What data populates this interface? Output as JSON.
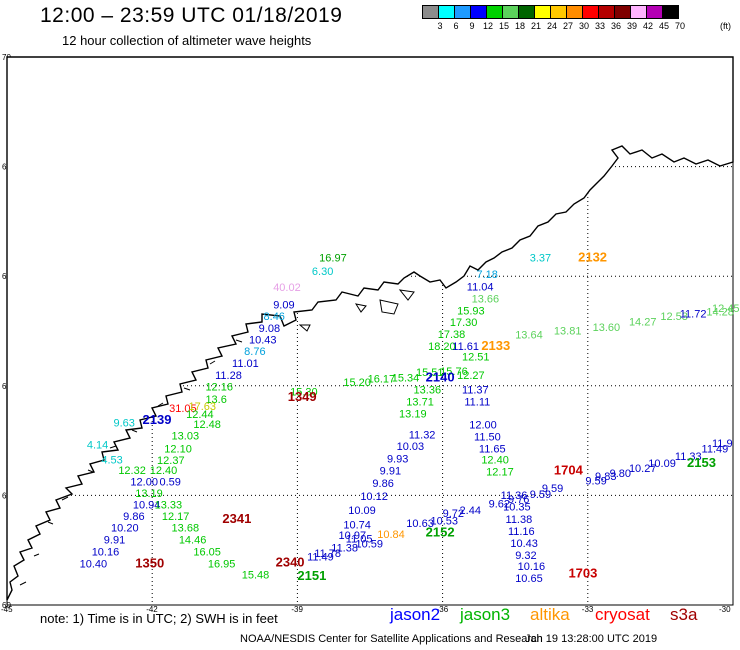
{
  "header": {
    "title": "12:00 – 23:59 UTC 01/18/2019",
    "subtitle": "12 hour collection of altimeter wave heights"
  },
  "legend": {
    "unit": "(ft)",
    "labels": [
      "3",
      "6",
      "9",
      "12",
      "15",
      "18",
      "21",
      "24",
      "27",
      "30",
      "33",
      "36",
      "39",
      "42",
      "45",
      "70"
    ],
    "colors": [
      "#8c8c8c",
      "#00ffff",
      "#1e9bff",
      "#0000ff",
      "#00d200",
      "#5cd25c",
      "#006400",
      "#ffff00",
      "#ffc800",
      "#ff8c00",
      "#ff0000",
      "#b40000",
      "#7f0000",
      "#ffb4ff",
      "#b400b4",
      "#000000"
    ]
  },
  "map": {
    "lat_labels": [
      "70",
      "68",
      "66",
      "64",
      "62",
      "60"
    ],
    "lon_labels": [
      "-45",
      "-42",
      "-39",
      "-36",
      "-33",
      "-30"
    ],
    "land_color": "#ffffff",
    "coast_color": "#000000",
    "grid": "dotted"
  },
  "labels": [
    {
      "t": "16.97",
      "lat": 66.27,
      "lon": -38.55,
      "c": "#00a000"
    },
    {
      "t": "6.30",
      "lat": 66.02,
      "lon": -38.7,
      "c": "#00c8c8"
    },
    {
      "t": "40.02",
      "lat": 65.73,
      "lon": -39.5,
      "c": "#e6a0e6"
    },
    {
      "t": "9.09",
      "lat": 65.41,
      "lon": -39.5,
      "c": "#0000c8"
    },
    {
      "t": "8.46",
      "lat": 65.2,
      "lon": -39.7,
      "c": "#00a0dc"
    },
    {
      "t": "9.08",
      "lat": 64.98,
      "lon": -39.8,
      "c": "#0000c8"
    },
    {
      "t": "10.43",
      "lat": 64.77,
      "lon": -40.0,
      "c": "#0000c8"
    },
    {
      "t": "8.76",
      "lat": 64.56,
      "lon": -40.1,
      "c": "#00a0dc"
    },
    {
      "t": "11.01",
      "lat": 64.34,
      "lon": -40.35,
      "c": "#0000c8"
    },
    {
      "t": "11.28",
      "lat": 64.12,
      "lon": -40.7,
      "c": "#0000c8"
    },
    {
      "t": "12.16",
      "lat": 63.91,
      "lon": -40.9,
      "c": "#00c800"
    },
    {
      "t": "13.6",
      "lat": 63.69,
      "lon": -40.9,
      "c": "#00c800"
    },
    {
      "t": "15.30",
      "lat": 63.82,
      "lon": -39.15,
      "c": "#00c800"
    },
    {
      "t": "15.20",
      "lat": 64.0,
      "lon": -38.05,
      "c": "#00c800"
    },
    {
      "t": "16.17",
      "lat": 64.06,
      "lon": -37.55,
      "c": "#00c800"
    },
    {
      "t": "15.34",
      "lat": 64.08,
      "lon": -37.05,
      "c": "#00c800"
    },
    {
      "t": "15.51",
      "lat": 64.18,
      "lon": -36.55,
      "c": "#00c800"
    },
    {
      "t": "15.76",
      "lat": 64.2,
      "lon": -36.05,
      "c": "#00c800"
    },
    {
      "t": "1349",
      "lat": 63.72,
      "lon": -39.2,
      "c": "#a00000",
      "orbit": true
    },
    {
      "t": "31.05",
      "lat": 63.52,
      "lon": -41.65,
      "c": "#ff0000"
    },
    {
      "t": "17.63",
      "lat": 63.56,
      "lon": -41.25,
      "c": "#c8c800"
    },
    {
      "t": "12.44",
      "lat": 63.41,
      "lon": -41.3,
      "c": "#00c800"
    },
    {
      "t": "2139",
      "lat": 63.3,
      "lon": -42.2,
      "c": "#0000c8",
      "orbit": true
    },
    {
      "t": "12.48",
      "lat": 63.23,
      "lon": -41.15,
      "c": "#00c800"
    },
    {
      "t": "13.03",
      "lat": 63.02,
      "lon": -41.6,
      "c": "#00c800"
    },
    {
      "t": "12.10",
      "lat": 62.78,
      "lon": -41.75,
      "c": "#00c800"
    },
    {
      "t": "12.37",
      "lat": 62.57,
      "lon": -41.9,
      "c": "#00c800"
    },
    {
      "t": "12.40",
      "lat": 62.39,
      "lon": -42.05,
      "c": "#00c800"
    },
    {
      "t": "12.32",
      "lat": 62.39,
      "lon": -42.7,
      "c": "#00c800"
    },
    {
      "t": "4.53",
      "lat": 62.58,
      "lon": -43.05,
      "c": "#00c8c8"
    },
    {
      "t": "4.14",
      "lat": 62.86,
      "lon": -43.35,
      "c": "#00c8c8"
    },
    {
      "t": "9.63",
      "lat": 63.26,
      "lon": -42.8,
      "c": "#00c8c8"
    },
    {
      "t": "12.00",
      "lat": 62.18,
      "lon": -42.45,
      "c": "#0000c8"
    },
    {
      "t": "0.59",
      "lat": 62.18,
      "lon": -41.85,
      "c": "#0000c8"
    },
    {
      "t": "13.19",
      "lat": 61.97,
      "lon": -42.35,
      "c": "#00c800"
    },
    {
      "t": "10.94",
      "lat": 61.76,
      "lon": -42.4,
      "c": "#0000c8"
    },
    {
      "t": "13.33",
      "lat": 61.76,
      "lon": -41.95,
      "c": "#00c800"
    },
    {
      "t": "9.86",
      "lat": 61.55,
      "lon": -42.6,
      "c": "#0000c8"
    },
    {
      "t": "12.17",
      "lat": 61.55,
      "lon": -41.8,
      "c": "#00c800"
    },
    {
      "t": "10.20",
      "lat": 61.34,
      "lon": -42.85,
      "c": "#0000c8"
    },
    {
      "t": "13.68",
      "lat": 61.34,
      "lon": -41.6,
      "c": "#00c800"
    },
    {
      "t": "9.91",
      "lat": 61.12,
      "lon": -43.0,
      "c": "#0000c8"
    },
    {
      "t": "14.46",
      "lat": 61.12,
      "lon": -41.45,
      "c": "#00c800"
    },
    {
      "t": "10.16",
      "lat": 60.9,
      "lon": -43.25,
      "c": "#0000c8"
    },
    {
      "t": "16.05",
      "lat": 60.9,
      "lon": -41.15,
      "c": "#00c800"
    },
    {
      "t": "10.40",
      "lat": 60.68,
      "lon": -43.5,
      "c": "#0000c8"
    },
    {
      "t": "1350",
      "lat": 60.68,
      "lon": -42.35,
      "c": "#a00000",
      "orbit": true
    },
    {
      "t": "16.95",
      "lat": 60.68,
      "lon": -40.85,
      "c": "#00c800"
    },
    {
      "t": "2341",
      "lat": 61.5,
      "lon": -40.55,
      "c": "#a00000",
      "orbit": true
    },
    {
      "t": "2340",
      "lat": 60.7,
      "lon": -39.45,
      "c": "#a00000",
      "orbit": true
    },
    {
      "t": "15.48",
      "lat": 60.48,
      "lon": -40.15,
      "c": "#00c800"
    },
    {
      "t": "2151",
      "lat": 60.46,
      "lon": -39.0,
      "c": "#00a000",
      "orbit": true
    },
    {
      "t": "11.49",
      "lat": 60.81,
      "lon": -38.8,
      "c": "#0000c8"
    },
    {
      "t": "11.78",
      "lat": 60.88,
      "lon": -38.65,
      "c": "#0000c8"
    },
    {
      "t": "11.38",
      "lat": 60.98,
      "lon": -38.3,
      "c": "#0000c8"
    },
    {
      "t": "10.97",
      "lat": 61.2,
      "lon": -38.15,
      "c": "#0000c8"
    },
    {
      "t": "10.59",
      "lat": 61.05,
      "lon": -37.8,
      "c": "#0000c8"
    },
    {
      "t": "11.05",
      "lat": 61.14,
      "lon": -38.0,
      "c": "#0000c8"
    },
    {
      "t": "10.74",
      "lat": 61.4,
      "lon": -38.05,
      "c": "#0000c8"
    },
    {
      "t": "10.09",
      "lat": 61.66,
      "lon": -37.95,
      "c": "#0000c8"
    },
    {
      "t": "10.12",
      "lat": 61.92,
      "lon": -37.7,
      "c": "#0000c8"
    },
    {
      "t": "9.86",
      "lat": 62.15,
      "lon": -37.45,
      "c": "#0000c8"
    },
    {
      "t": "9.91",
      "lat": 62.38,
      "lon": -37.3,
      "c": "#0000c8"
    },
    {
      "t": "9.93",
      "lat": 62.6,
      "lon": -37.15,
      "c": "#0000c8"
    },
    {
      "t": "10.03",
      "lat": 62.83,
      "lon": -36.95,
      "c": "#0000c8"
    },
    {
      "t": "11.32",
      "lat": 63.04,
      "lon": -36.7,
      "c": "#0000c8"
    },
    {
      "t": "10.84",
      "lat": 61.22,
      "lon": -37.35,
      "c": "#ff9600"
    },
    {
      "t": "10.63",
      "lat": 61.42,
      "lon": -36.75,
      "c": "#0000c8"
    },
    {
      "t": "10.53",
      "lat": 61.47,
      "lon": -36.25,
      "c": "#0000c8"
    },
    {
      "t": "2152",
      "lat": 61.25,
      "lon": -36.35,
      "c": "#00a000",
      "orbit": true
    },
    {
      "t": "2.44",
      "lat": 61.66,
      "lon": -35.65,
      "c": "#0000c8"
    },
    {
      "t": "9.72",
      "lat": 61.61,
      "lon": -36.0,
      "c": "#0000c8"
    },
    {
      "t": "9.62",
      "lat": 61.78,
      "lon": -35.05,
      "c": "#0000c8"
    },
    {
      "t": "9.76",
      "lat": 61.86,
      "lon": -34.65,
      "c": "#0000c8"
    },
    {
      "t": "9.59",
      "lat": 61.95,
      "lon": -34.2,
      "c": "#0000c8"
    },
    {
      "t": "9.59",
      "lat": 62.06,
      "lon": -33.95,
      "c": "#0000c8"
    },
    {
      "t": "9.59",
      "lat": 62.2,
      "lon": -33.05,
      "c": "#0000c8"
    },
    {
      "t": "9.83",
      "lat": 62.28,
      "lon": -32.85,
      "c": "#0000c8"
    },
    {
      "t": "9.80",
      "lat": 62.34,
      "lon": -32.55,
      "c": "#0000c8"
    },
    {
      "t": "10.27",
      "lat": 62.43,
      "lon": -32.15,
      "c": "#0000c8"
    },
    {
      "t": "10.09",
      "lat": 62.52,
      "lon": -31.75,
      "c": "#0000c8"
    },
    {
      "t": "11.33",
      "lat": 62.65,
      "lon": -31.2,
      "c": "#0000c8"
    },
    {
      "t": "11.49",
      "lat": 62.78,
      "lon": -30.65,
      "c": "#0000c8"
    },
    {
      "t": "11.9",
      "lat": 62.88,
      "lon": -30.3,
      "c": "#0000c8"
    },
    {
      "t": "2153",
      "lat": 62.52,
      "lon": -30.95,
      "c": "#00a000",
      "orbit": true
    },
    {
      "t": "1704",
      "lat": 62.38,
      "lon": -33.7,
      "c": "#c80000",
      "orbit": true
    },
    {
      "t": "1703",
      "lat": 60.5,
      "lon": -33.4,
      "c": "#c80000",
      "orbit": true
    },
    {
      "t": "3.37",
      "lat": 66.27,
      "lon": -34.2,
      "c": "#00c8c8"
    },
    {
      "t": "2132",
      "lat": 66.27,
      "lon": -33.2,
      "c": "#ff9600",
      "orbit": true
    },
    {
      "t": "7.18",
      "lat": 65.97,
      "lon": -35.3,
      "c": "#00a0dc"
    },
    {
      "t": "11.04",
      "lat": 65.74,
      "lon": -35.5,
      "c": "#0000c8"
    },
    {
      "t": "13.66",
      "lat": 65.52,
      "lon": -35.4,
      "c": "#5cd25c"
    },
    {
      "t": "15.93",
      "lat": 65.3,
      "lon": -35.7,
      "c": "#00c800"
    },
    {
      "t": "17.30",
      "lat": 65.09,
      "lon": -35.85,
      "c": "#00c800"
    },
    {
      "t": "17.38",
      "lat": 64.87,
      "lon": -36.1,
      "c": "#00c800"
    },
    {
      "t": "18.20",
      "lat": 64.65,
      "lon": -36.3,
      "c": "#00c800"
    },
    {
      "t": "11.61",
      "lat": 64.65,
      "lon": -35.8,
      "c": "#0000c8"
    },
    {
      "t": "2133",
      "lat": 64.65,
      "lon": -35.2,
      "c": "#ff9600",
      "orbit": true
    },
    {
      "t": "12.51",
      "lat": 64.46,
      "lon": -35.6,
      "c": "#00c800"
    },
    {
      "t": "2140",
      "lat": 64.08,
      "lon": -36.35,
      "c": "#0000c8",
      "orbit": true
    },
    {
      "t": "12.27",
      "lat": 64.12,
      "lon": -35.7,
      "c": "#00c800"
    },
    {
      "t": "11.37",
      "lat": 63.86,
      "lon": -35.6,
      "c": "#0000c8"
    },
    {
      "t": "13.36",
      "lat": 63.86,
      "lon": -36.6,
      "c": "#00c800"
    },
    {
      "t": "13.71",
      "lat": 63.64,
      "lon": -36.75,
      "c": "#00c800"
    },
    {
      "t": "11.11",
      "lat": 63.64,
      "lon": -35.55,
      "c": "#0000c8"
    },
    {
      "t": "13.19",
      "lat": 63.42,
      "lon": -36.9,
      "c": "#00c800"
    },
    {
      "t": "12.00",
      "lat": 63.22,
      "lon": -35.45,
      "c": "#0000c8"
    },
    {
      "t": "11.50",
      "lat": 63.0,
      "lon": -35.35,
      "c": "#0000c8"
    },
    {
      "t": "11.65",
      "lat": 62.78,
      "lon": -35.25,
      "c": "#0000c8"
    },
    {
      "t": "12.40",
      "lat": 62.58,
      "lon": -35.2,
      "c": "#00c800"
    },
    {
      "t": "12.17",
      "lat": 62.36,
      "lon": -35.1,
      "c": "#00c800"
    },
    {
      "t": "11.36",
      "lat": 61.93,
      "lon": -34.8,
      "c": "#0000c8"
    },
    {
      "t": "10.35",
      "lat": 61.72,
      "lon": -34.75,
      "c": "#0000c8"
    },
    {
      "t": "11.38",
      "lat": 61.5,
      "lon": -34.7,
      "c": "#0000c8"
    },
    {
      "t": "11.16",
      "lat": 61.28,
      "lon": -34.65,
      "c": "#0000c8"
    },
    {
      "t": "10.43",
      "lat": 61.06,
      "lon": -34.6,
      "c": "#0000c8"
    },
    {
      "t": "9.32",
      "lat": 60.84,
      "lon": -34.5,
      "c": "#0000c8"
    },
    {
      "t": "10.16",
      "lat": 60.64,
      "lon": -34.45,
      "c": "#0000c8"
    },
    {
      "t": "10.65",
      "lat": 60.42,
      "lon": -34.5,
      "c": "#0000c8"
    },
    {
      "t": "13.64",
      "lat": 64.86,
      "lon": -34.5,
      "c": "#5cd25c"
    },
    {
      "t": "13.81",
      "lat": 64.94,
      "lon": -33.7,
      "c": "#5cd25c"
    },
    {
      "t": "13.60",
      "lat": 65.0,
      "lon": -32.9,
      "c": "#5cd25c"
    },
    {
      "t": "14.27",
      "lat": 65.1,
      "lon": -32.15,
      "c": "#5cd25c"
    },
    {
      "t": "12.53",
      "lat": 65.2,
      "lon": -31.5,
      "c": "#5cd25c"
    },
    {
      "t": "11.72",
      "lat": 65.25,
      "lon": -31.1,
      "c": "#0000c8"
    },
    {
      "t": "14.28",
      "lat": 65.28,
      "lon": -30.55,
      "c": "#5cd25c"
    },
    {
      "t": "12.45",
      "lat": 65.35,
      "lon": -30.15,
      "c": "#5cd25c"
    }
  ],
  "note": "note:  1) Time is in UTC;  2) SWH is in feet",
  "satellites": [
    {
      "name": "jason2",
      "color": "#0000ff"
    },
    {
      "name": "jason3",
      "color": "#00b400"
    },
    {
      "name": "altika",
      "color": "#ff9600"
    },
    {
      "name": "cryosat",
      "color": "#ff0000"
    },
    {
      "name": "s3a",
      "color": "#a00000"
    }
  ],
  "credit": "NOAA/NESDIS Center for Satellite Applications and Research",
  "timestamp": "Jan 19 13:28:00 UTC 2019"
}
